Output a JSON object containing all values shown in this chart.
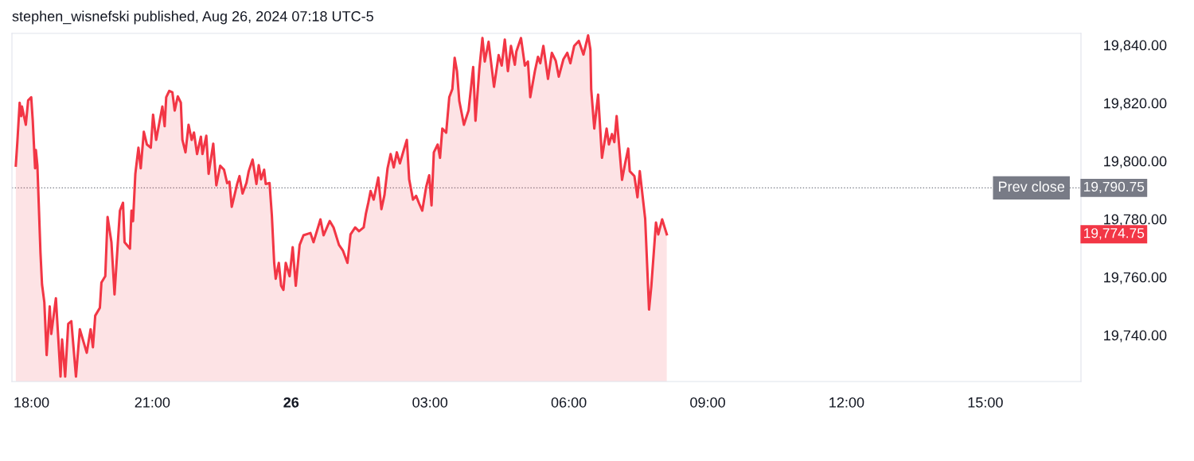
{
  "chart_data": {
    "type": "area",
    "title": "stephen_wisnefski published, Aug 26, 2024 07:18 UTC-5",
    "xlim": [
      "2024-08-25T17:58",
      "2024-08-26T17:04"
    ],
    "ylim": [
      19724,
      19844
    ],
    "xticks": [
      {
        "value": "2024-08-25T18:00",
        "label": "18:00"
      },
      {
        "value": "2024-08-25T21:00",
        "label": "21:00"
      },
      {
        "value": "2024-08-26T00:00",
        "label": "26"
      },
      {
        "value": "2024-08-26T03:00",
        "label": "03:00"
      },
      {
        "value": "2024-08-26T06:00",
        "label": "06:00"
      },
      {
        "value": "2024-08-26T09:00",
        "label": "09:00"
      },
      {
        "value": "2024-08-26T12:00",
        "label": "12:00"
      },
      {
        "value": "2024-08-26T15:00",
        "label": "15:00"
      }
    ],
    "yticks": [
      {
        "value": 19740,
        "label": "19,740.00"
      },
      {
        "value": 19760,
        "label": "19,760.00"
      },
      {
        "value": 19780,
        "label": "19,780.00"
      },
      {
        "value": 19800,
        "label": "19,800.00"
      },
      {
        "value": 19820,
        "label": "19,820.00"
      },
      {
        "value": 19840,
        "label": "19,840.00"
      }
    ],
    "grid": false,
    "legend": false,
    "ref_lines": [
      {
        "axis": "y",
        "value": 19790.75,
        "label": "Prev close",
        "color": "#787b86",
        "line_style": "dotted"
      }
    ],
    "annotations": [
      "19,790.75",
      "19,774.75"
    ],
    "series": [
      {
        "color": "#f23645",
        "x": [
          "2024-08-25T18:03",
          "2024-08-25T18:05",
          "2024-08-25T18:08",
          "2024-08-25T18:10",
          "2024-08-25T18:11",
          "2024-08-25T18:16",
          "2024-08-25T18:19",
          "2024-08-25T18:23",
          "2024-08-25T18:25",
          "2024-08-25T18:28",
          "2024-08-25T18:29",
          "2024-08-25T18:31",
          "2024-08-25T18:35",
          "2024-08-25T18:37",
          "2024-08-25T18:40",
          "2024-08-25T18:43",
          "2024-08-25T18:47",
          "2024-08-25T18:49",
          "2024-08-25T18:55",
          "2024-08-25T19:01",
          "2024-08-25T19:03",
          "2024-08-25T19:07",
          "2024-08-25T19:11",
          "2024-08-25T19:15",
          "2024-08-25T19:21",
          "2024-08-25T19:26",
          "2024-08-25T19:35",
          "2024-08-25T19:40",
          "2024-08-25T19:43",
          "2024-08-25T19:46",
          "2024-08-25T19:52",
          "2024-08-25T19:54",
          "2024-08-25T19:59",
          "2024-08-25T20:02",
          "2024-08-25T20:07",
          "2024-08-25T20:11",
          "2024-08-25T20:14",
          "2024-08-25T20:18",
          "2024-08-25T20:22",
          "2024-08-25T20:24",
          "2024-08-25T20:31",
          "2024-08-25T20:33",
          "2024-08-25T20:35",
          "2024-08-25T20:38",
          "2024-08-25T20:42",
          "2024-08-25T20:45",
          "2024-08-25T20:49",
          "2024-08-25T20:53",
          "2024-08-25T20:58",
          "2024-08-25T21:01",
          "2024-08-25T21:05",
          "2024-08-25T21:13",
          "2024-08-25T21:16",
          "2024-08-25T21:18",
          "2024-08-25T21:22",
          "2024-08-25T21:26",
          "2024-08-25T21:29",
          "2024-08-25T21:33",
          "2024-08-25T21:37",
          "2024-08-25T21:39",
          "2024-08-25T21:43",
          "2024-08-25T21:47",
          "2024-08-25T21:51",
          "2024-08-25T21:54",
          "2024-08-25T21:58",
          "2024-08-25T22:03",
          "2024-08-25T22:05",
          "2024-08-25T22:10",
          "2024-08-25T22:13",
          "2024-08-25T22:19",
          "2024-08-25T22:23",
          "2024-08-25T22:28",
          "2024-08-25T22:33",
          "2024-08-25T22:37",
          "2024-08-25T22:40",
          "2024-08-25T22:43",
          "2024-08-25T22:50",
          "2024-08-25T22:53",
          "2024-08-25T22:57",
          "2024-08-25T23:02",
          "2024-08-25T23:05",
          "2024-08-25T23:10",
          "2024-08-25T23:15",
          "2024-08-25T23:18",
          "2024-08-25T23:21",
          "2024-08-25T23:25",
          "2024-08-25T23:27",
          "2024-08-25T23:32",
          "2024-08-25T23:35",
          "2024-08-25T23:38",
          "2024-08-25T23:40",
          "2024-08-25T23:44",
          "2024-08-25T23:47",
          "2024-08-25T23:50",
          "2024-08-25T23:53",
          "2024-08-25T23:58",
          "2024-08-26T00:02",
          "2024-08-26T00:06",
          "2024-08-26T00:11",
          "2024-08-26T00:16",
          "2024-08-26T00:25",
          "2024-08-26T00:29",
          "2024-08-26T00:38",
          "2024-08-26T00:42",
          "2024-08-26T00:50",
          "2024-08-26T00:55",
          "2024-08-26T01:02",
          "2024-08-26T01:07",
          "2024-08-26T01:13",
          "2024-08-26T01:17",
          "2024-08-26T01:23",
          "2024-08-26T01:28",
          "2024-08-26T01:34",
          "2024-08-26T01:37",
          "2024-08-26T01:40",
          "2024-08-26T01:43",
          "2024-08-26T01:47",
          "2024-08-26T01:53",
          "2024-08-26T01:57",
          "2024-08-26T02:01",
          "2024-08-26T02:05",
          "2024-08-26T02:09",
          "2024-08-26T02:13",
          "2024-08-26T02:17",
          "2024-08-26T02:21",
          "2024-08-26T02:26",
          "2024-08-26T02:30",
          "2024-08-26T02:33",
          "2024-08-26T02:38",
          "2024-08-26T02:42",
          "2024-08-26T02:46",
          "2024-08-26T02:50",
          "2024-08-26T02:55",
          "2024-08-26T02:59",
          "2024-08-26T03:02",
          "2024-08-26T03:05",
          "2024-08-26T03:10",
          "2024-08-26T03:13",
          "2024-08-26T03:16",
          "2024-08-26T03:21",
          "2024-08-26T03:25",
          "2024-08-26T03:29",
          "2024-08-26T03:32",
          "2024-08-26T03:35",
          "2024-08-26T03:38",
          "2024-08-26T03:44",
          "2024-08-26T03:50",
          "2024-08-26T03:56",
          "2024-08-26T03:59",
          "2024-08-26T04:04",
          "2024-08-26T04:08",
          "2024-08-26T04:11",
          "2024-08-26T04:16",
          "2024-08-26T04:23",
          "2024-08-26T04:29",
          "2024-08-26T04:33",
          "2024-08-26T04:37",
          "2024-08-26T04:41",
          "2024-08-26T04:45",
          "2024-08-26T04:50",
          "2024-08-26T04:52",
          "2024-08-26T04:58",
          "2024-08-26T05:03",
          "2024-08-26T05:07",
          "2024-08-26T05:10",
          "2024-08-26T05:16",
          "2024-08-26T05:20",
          "2024-08-26T05:23",
          "2024-08-26T05:27",
          "2024-08-26T05:33",
          "2024-08-26T05:38",
          "2024-08-26T05:43",
          "2024-08-26T05:47",
          "2024-08-26T05:53",
          "2024-08-26T05:58",
          "2024-08-26T06:02",
          "2024-08-26T06:07",
          "2024-08-26T06:13",
          "2024-08-26T06:19",
          "2024-08-26T06:25",
          "2024-08-26T06:28",
          "2024-08-26T06:29",
          "2024-08-26T06:33",
          "2024-08-26T06:38",
          "2024-08-26T06:43",
          "2024-08-26T06:49",
          "2024-08-26T06:52",
          "2024-08-26T06:56",
          "2024-08-26T06:59",
          "2024-08-26T07:02",
          "2024-08-26T07:09",
          "2024-08-26T07:13",
          "2024-08-26T07:17",
          "2024-08-26T07:19",
          "2024-08-26T07:25",
          "2024-08-26T07:29",
          "2024-08-26T07:32",
          "2024-08-26T07:37",
          "2024-08-26T07:39",
          "2024-08-26T07:44",
          "2024-08-26T07:47",
          "2024-08-26T07:53",
          "2024-08-26T07:56",
          "2024-08-26T08:01",
          "2024-08-26T08:07"
        ],
        "values": [
          19798.4,
          19806.5,
          19820.1,
          19815.5,
          19818.8,
          19812.5,
          19820.9,
          19822.0,
          19813.9,
          19797.5,
          19803.8,
          19798.4,
          19768.4,
          19757.5,
          19751.3,
          19733.1,
          19749.9,
          19740.4,
          19752.7,
          19725.7,
          19738.5,
          19725.7,
          19743.9,
          19744.8,
          19725.7,
          19742.0,
          19733.9,
          19742.0,
          19735.8,
          19746.7,
          19749.4,
          19758.1,
          19760.3,
          19780.7,
          19772.0,
          19754.0,
          19766.5,
          19782.9,
          19785.6,
          19772.0,
          19769.8,
          19782.9,
          19779.3,
          19795.6,
          19804.6,
          19797.5,
          19810.1,
          19805.7,
          19804.6,
          19816.0,
          19807.3,
          19818.8,
          19812.0,
          19822.0,
          19824.2,
          19823.7,
          19817.4,
          19822.3,
          19820.1,
          19807.3,
          19803.0,
          19812.5,
          19807.3,
          19809.8,
          19802.4,
          19808.4,
          19802.4,
          19808.7,
          19795.6,
          19806.0,
          19791.6,
          19798.4,
          19797.0,
          19792.4,
          19792.9,
          19784.2,
          19792.1,
          19794.8,
          19788.8,
          19792.4,
          19796.5,
          19800.5,
          19792.1,
          19798.6,
          19793.7,
          19797.0,
          19792.1,
          19792.4,
          19781.2,
          19764.9,
          19759.4,
          19764.9,
          19757.0,
          19755.6,
          19764.9,
          19760.3,
          19770.3,
          19757.0,
          19771.1,
          19774.4,
          19775.2,
          19772.0,
          19779.9,
          19774.4,
          19779.3,
          19777.1,
          19771.1,
          19769.2,
          19764.9,
          19774.7,
          19777.1,
          19775.8,
          19777.1,
          19782.0,
          19785.6,
          19789.7,
          19786.7,
          19794.3,
          19783.4,
          19788.3,
          19797.5,
          19802.4,
          19797.8,
          19803.0,
          19799.2,
          19803.8,
          19807.3,
          19793.7,
          19786.7,
          19788.0,
          19785.3,
          19782.9,
          19791.0,
          19795.1,
          19784.7,
          19803.0,
          19805.7,
          19801.1,
          19811.2,
          19809.8,
          19822.0,
          19824.8,
          19835.6,
          19831.0,
          19820.7,
          19812.5,
          19817.4,
          19832.4,
          19813.9,
          19831.8,
          19842.4,
          19834.3,
          19841.1,
          19825.6,
          19836.5,
          19832.9,
          19841.9,
          19831.0,
          19839.7,
          19833.2,
          19837.8,
          19842.4,
          19832.9,
          19834.3,
          19822.0,
          19831.0,
          19835.9,
          19833.7,
          19839.7,
          19828.3,
          19837.3,
          19834.6,
          19829.1,
          19835.1,
          19837.3,
          19833.7,
          19839.7,
          19841.4,
          19836.7,
          19843.3,
          19838.4,
          19824.8,
          19811.2,
          19822.9,
          19801.1,
          19811.2,
          19805.7,
          19809.3,
          19806.5,
          19815.5,
          19793.5,
          19799.2,
          19804.3,
          19796.5,
          19794.8,
          19787.5,
          19796.5,
          19784.8,
          19780.1,
          19748.8,
          19757.0,
          19778.8,
          19774.7,
          19779.9,
          19774.75
        ]
      }
    ]
  }
}
